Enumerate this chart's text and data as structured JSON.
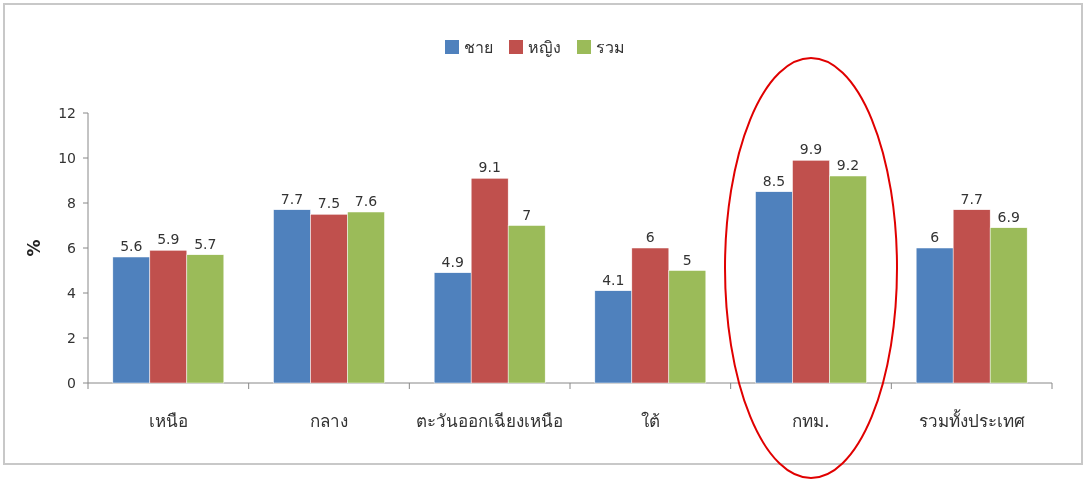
{
  "chart_data": {
    "type": "bar",
    "ylabel": "%",
    "categories": [
      "เหนือ",
      "กลาง",
      "ตะวันออกเฉียงเหนือ",
      "ใต้",
      "กทม.",
      "รวมทั้งประเทศ"
    ],
    "series": [
      {
        "name": "ชาย",
        "color": "#4f81bd",
        "values": [
          5.6,
          7.7,
          4.9,
          4.1,
          8.5,
          6
        ]
      },
      {
        "name": "หญิง",
        "color": "#c0504d",
        "values": [
          5.9,
          7.5,
          9.1,
          6,
          9.9,
          7.7
        ]
      },
      {
        "name": "รวม",
        "color": "#9bbb59",
        "values": [
          5.7,
          7.6,
          7,
          5,
          9.2,
          6.9
        ]
      }
    ],
    "ylim": [
      0,
      12
    ],
    "yticks": [
      0,
      2,
      4,
      6,
      8,
      10,
      12
    ],
    "grid": false,
    "legend": "top",
    "data_labels": true
  }
}
